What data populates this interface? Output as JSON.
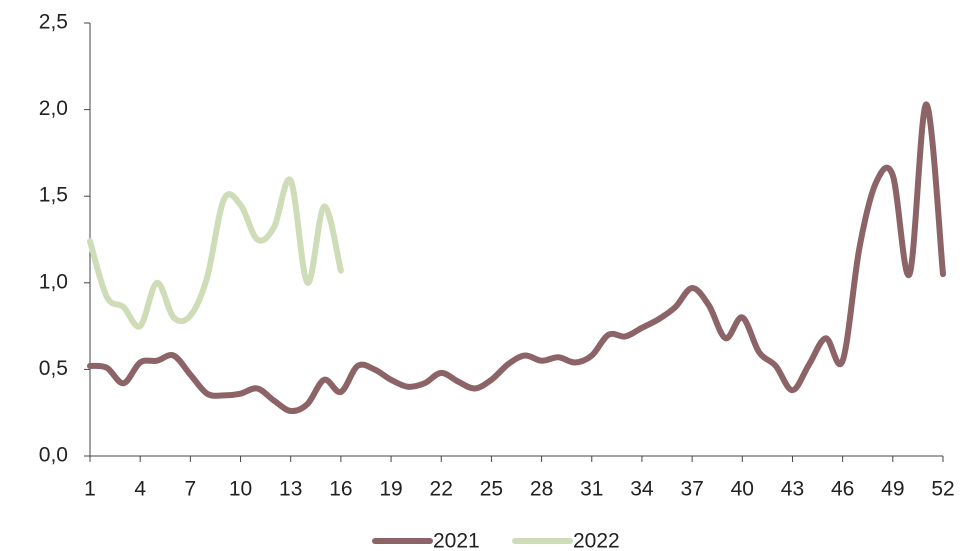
{
  "chart_data": {
    "type": "line",
    "x": [
      1,
      2,
      3,
      4,
      5,
      6,
      7,
      8,
      9,
      10,
      11,
      12,
      13,
      14,
      15,
      16,
      17,
      18,
      19,
      20,
      21,
      22,
      23,
      24,
      25,
      26,
      27,
      28,
      29,
      30,
      31,
      32,
      33,
      34,
      35,
      36,
      37,
      38,
      39,
      40,
      41,
      42,
      43,
      44,
      45,
      46,
      47,
      48,
      49,
      50,
      51,
      52
    ],
    "xlim": [
      1,
      52
    ],
    "xticks": [
      1,
      4,
      7,
      10,
      13,
      16,
      19,
      22,
      25,
      28,
      31,
      34,
      37,
      40,
      43,
      46,
      49,
      52
    ],
    "ylim": [
      0,
      2.5
    ],
    "yticks": [
      {
        "value": 0,
        "label": "0,0"
      },
      {
        "value": 0.5,
        "label": "0,5"
      },
      {
        "value": 1,
        "label": "1,0"
      },
      {
        "value": 1.5,
        "label": "1,5"
      },
      {
        "value": 2,
        "label": "2,0"
      },
      {
        "value": 2.5,
        "label": "2,5"
      }
    ],
    "series": [
      {
        "name": "2021",
        "color": "#8c6468",
        "values": [
          0.52,
          0.51,
          0.42,
          0.54,
          0.55,
          0.58,
          0.47,
          0.36,
          0.35,
          0.36,
          0.39,
          0.32,
          0.26,
          0.3,
          0.44,
          0.37,
          0.52,
          0.5,
          0.44,
          0.4,
          0.42,
          0.48,
          0.43,
          0.39,
          0.44,
          0.53,
          0.58,
          0.55,
          0.57,
          0.54,
          0.58,
          0.7,
          0.69,
          0.74,
          0.79,
          0.86,
          0.97,
          0.87,
          0.68,
          0.8,
          0.6,
          0.52,
          0.38,
          0.53,
          0.68,
          0.55,
          1.2,
          1.58,
          1.62,
          1.05,
          2.03,
          1.05
        ]
      },
      {
        "name": "2022",
        "color": "#cfdcb8",
        "values": [
          1.24,
          0.92,
          0.86,
          0.75,
          1.0,
          0.8,
          0.81,
          1.03,
          1.48,
          1.45,
          1.25,
          1.32,
          1.59,
          1.0,
          1.44,
          1.07,
          null,
          null,
          null,
          null,
          null,
          null,
          null,
          null,
          null,
          null,
          null,
          null,
          null,
          null,
          null,
          null,
          null,
          null,
          null,
          null,
          null,
          null,
          null,
          null,
          null,
          null,
          null,
          null,
          null,
          null,
          null,
          null,
          null,
          null,
          null,
          null
        ]
      }
    ],
    "legend": "bottom"
  }
}
